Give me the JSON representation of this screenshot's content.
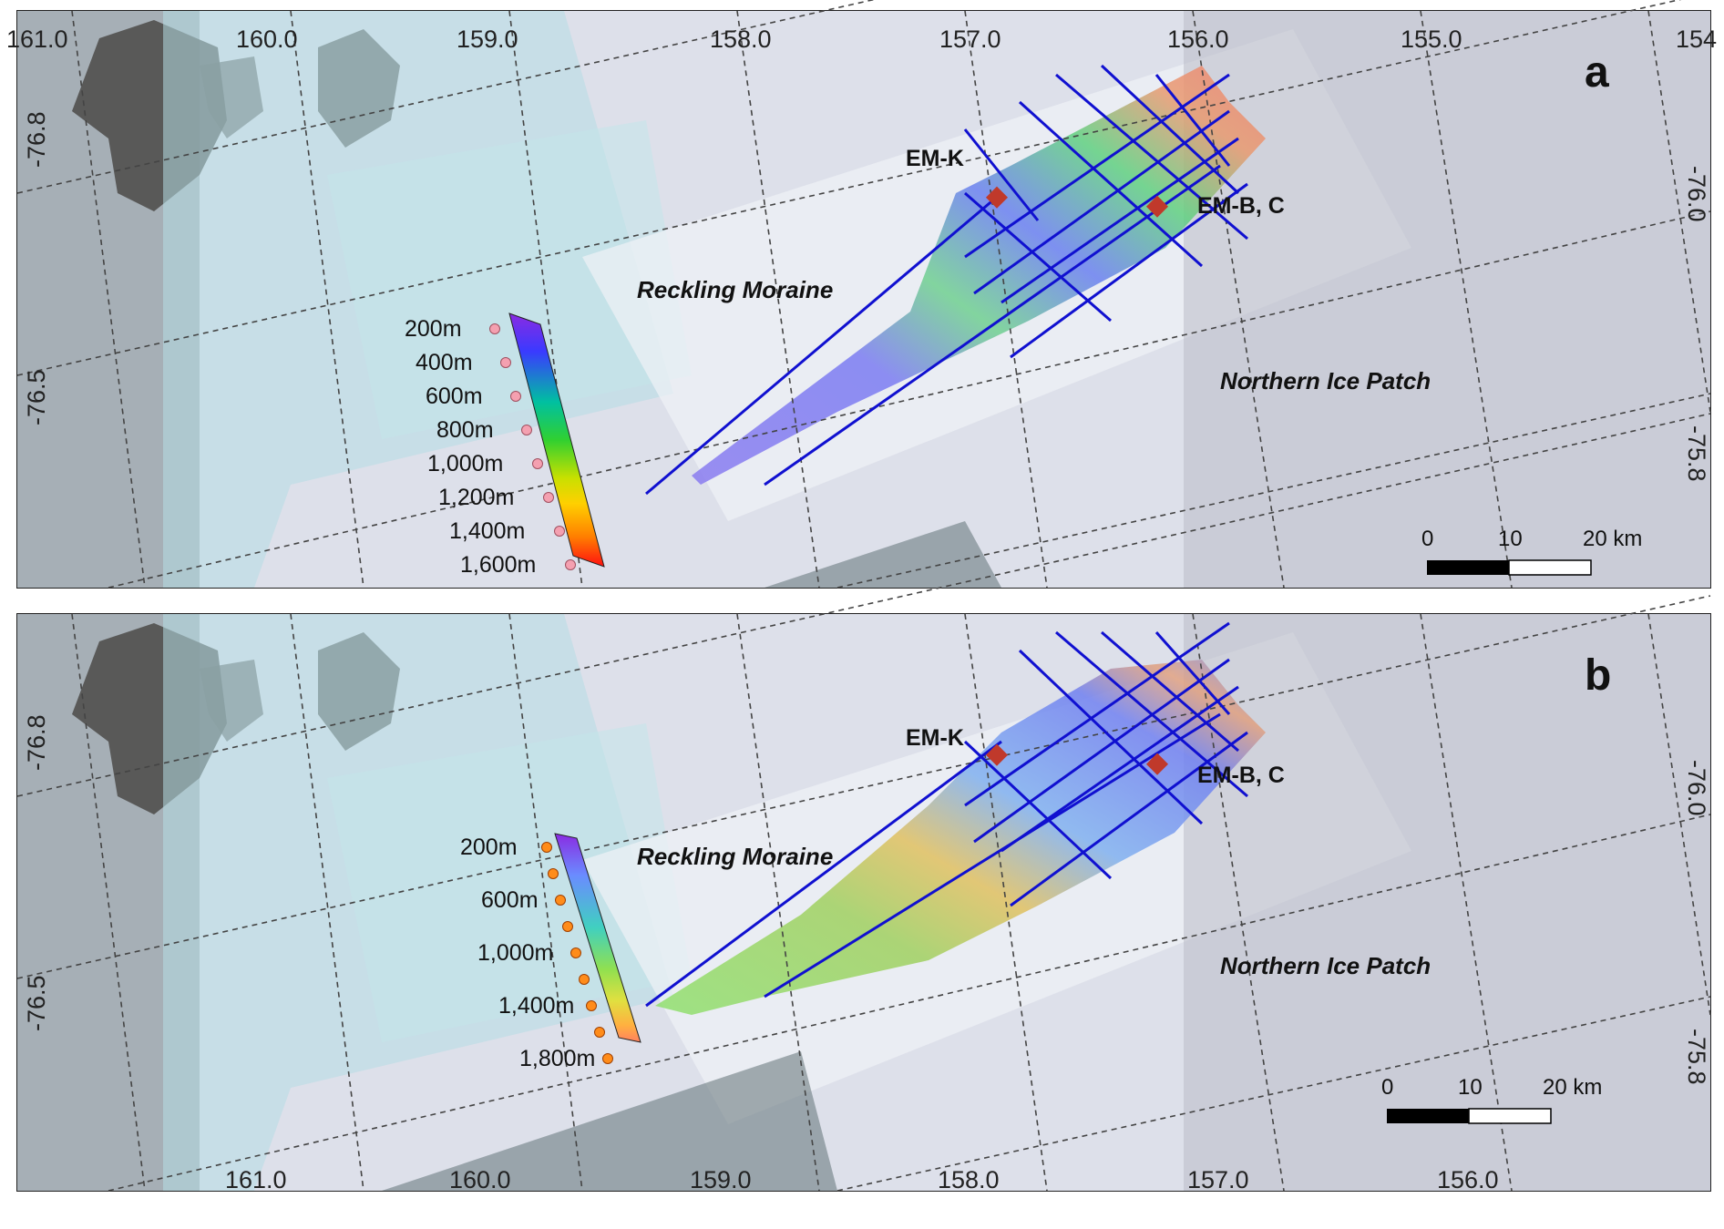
{
  "panels": [
    {
      "id": "a",
      "letter": "a",
      "top_ticks": [
        "161.0",
        "160.0",
        "159.0",
        "158.0",
        "157.0",
        "156.0",
        "155.0",
        "154"
      ],
      "left_ticks": [
        "-76.8",
        "-76.5"
      ],
      "right_ticks": [
        "-76.0",
        "-75.8"
      ],
      "places": [
        "Reckling Moraine",
        "Northern Ice Patch"
      ],
      "sites": [
        "EM-K",
        "EM-B, C"
      ],
      "legend": {
        "labels": [
          "200m",
          "400m",
          "600m",
          "800m",
          "1,000m",
          "1,200m",
          "1,400m",
          "1,600m"
        ],
        "colors": [
          "#8a2be2",
          "#3a3aff",
          "#00c0a0",
          "#30d030",
          "#c8e000",
          "#ffd000",
          "#ff8000",
          "#ff1010"
        ],
        "dot_color": "#f4a0b0"
      },
      "scale": {
        "labels": [
          "0",
          "10",
          "20 km"
        ]
      }
    },
    {
      "id": "b",
      "letter": "b",
      "bottom_ticks": [
        "161.0",
        "160.0",
        "159.0",
        "158.0",
        "157.0",
        "156.0"
      ],
      "left_ticks": [
        "-76.8",
        "-76.5"
      ],
      "right_ticks": [
        "-76.0",
        "-75.8"
      ],
      "places": [
        "Reckling Moraine",
        "Northern Ice Patch"
      ],
      "sites": [
        "EM-K",
        "EM-B, C"
      ],
      "legend": {
        "labels": [
          "200m",
          "600m",
          "1,000m",
          "1,400m",
          "1,800m"
        ],
        "colors": [
          "#8a2be2",
          "#6a8cff",
          "#40d0c0",
          "#90e050",
          "#e0e040",
          "#ffb040",
          "#ff8060"
        ],
        "dot_color": "#ff8c1a"
      },
      "scale": {
        "labels": [
          "0",
          "10",
          "20 km"
        ]
      }
    }
  ],
  "colors": {
    "flight_line": "#1010d0",
    "site_marker": "#c0392b",
    "grid": "#444444"
  }
}
